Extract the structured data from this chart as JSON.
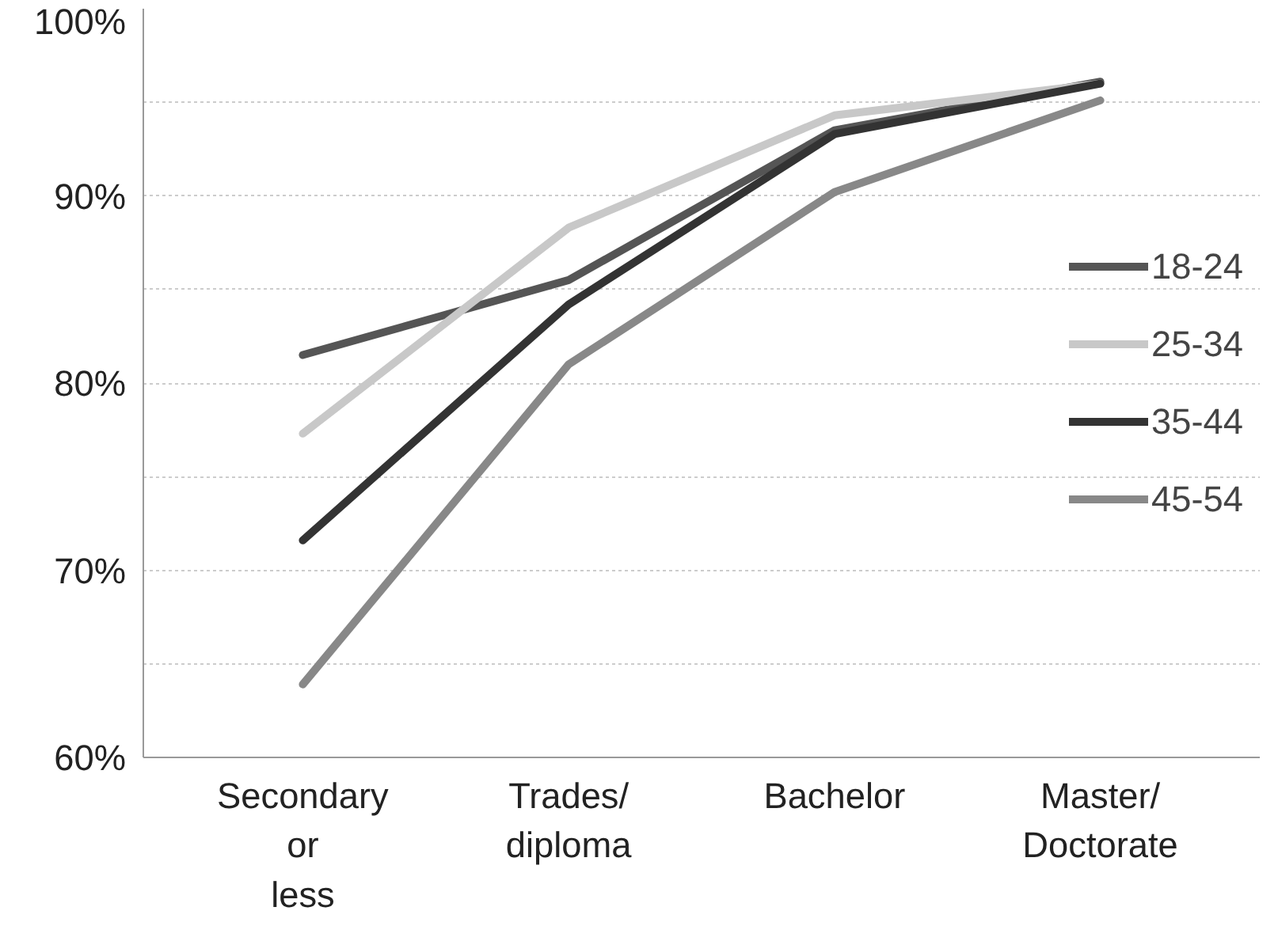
{
  "chart_data": {
    "type": "line",
    "categories": [
      "Secondary or less",
      "Trades/ diploma",
      "Bachelor",
      "Master/ Doctorate"
    ],
    "ylim": [
      60,
      100
    ],
    "yticks": [
      {
        "value": 60,
        "label": "60%"
      },
      {
        "value": 65,
        "label": null
      },
      {
        "value": 70,
        "label": "70%"
      },
      {
        "value": 75,
        "label": null
      },
      {
        "value": 80,
        "label": "80%"
      },
      {
        "value": 85,
        "label": null
      },
      {
        "value": 90,
        "label": "90%"
      },
      {
        "value": 95,
        "label": null
      },
      {
        "value": 100,
        "label": "100%"
      }
    ],
    "grid": "y",
    "legend": "right",
    "marker": "none",
    "line_style": "solid",
    "series": [
      {
        "name": "18-24",
        "color": "#555555",
        "values": [
          81.5,
          85.5,
          93.5,
          96.1
        ]
      },
      {
        "name": "25-34",
        "color": "#c8c8c8",
        "values": [
          77.3,
          88.3,
          94.3,
          96.0
        ]
      },
      {
        "name": "35-44",
        "color": "#333333",
        "values": [
          71.6,
          84.2,
          93.3,
          96.0
        ]
      },
      {
        "name": "45-54",
        "color": "#888888",
        "values": [
          63.9,
          81.0,
          90.2,
          95.1
        ]
      }
    ]
  }
}
